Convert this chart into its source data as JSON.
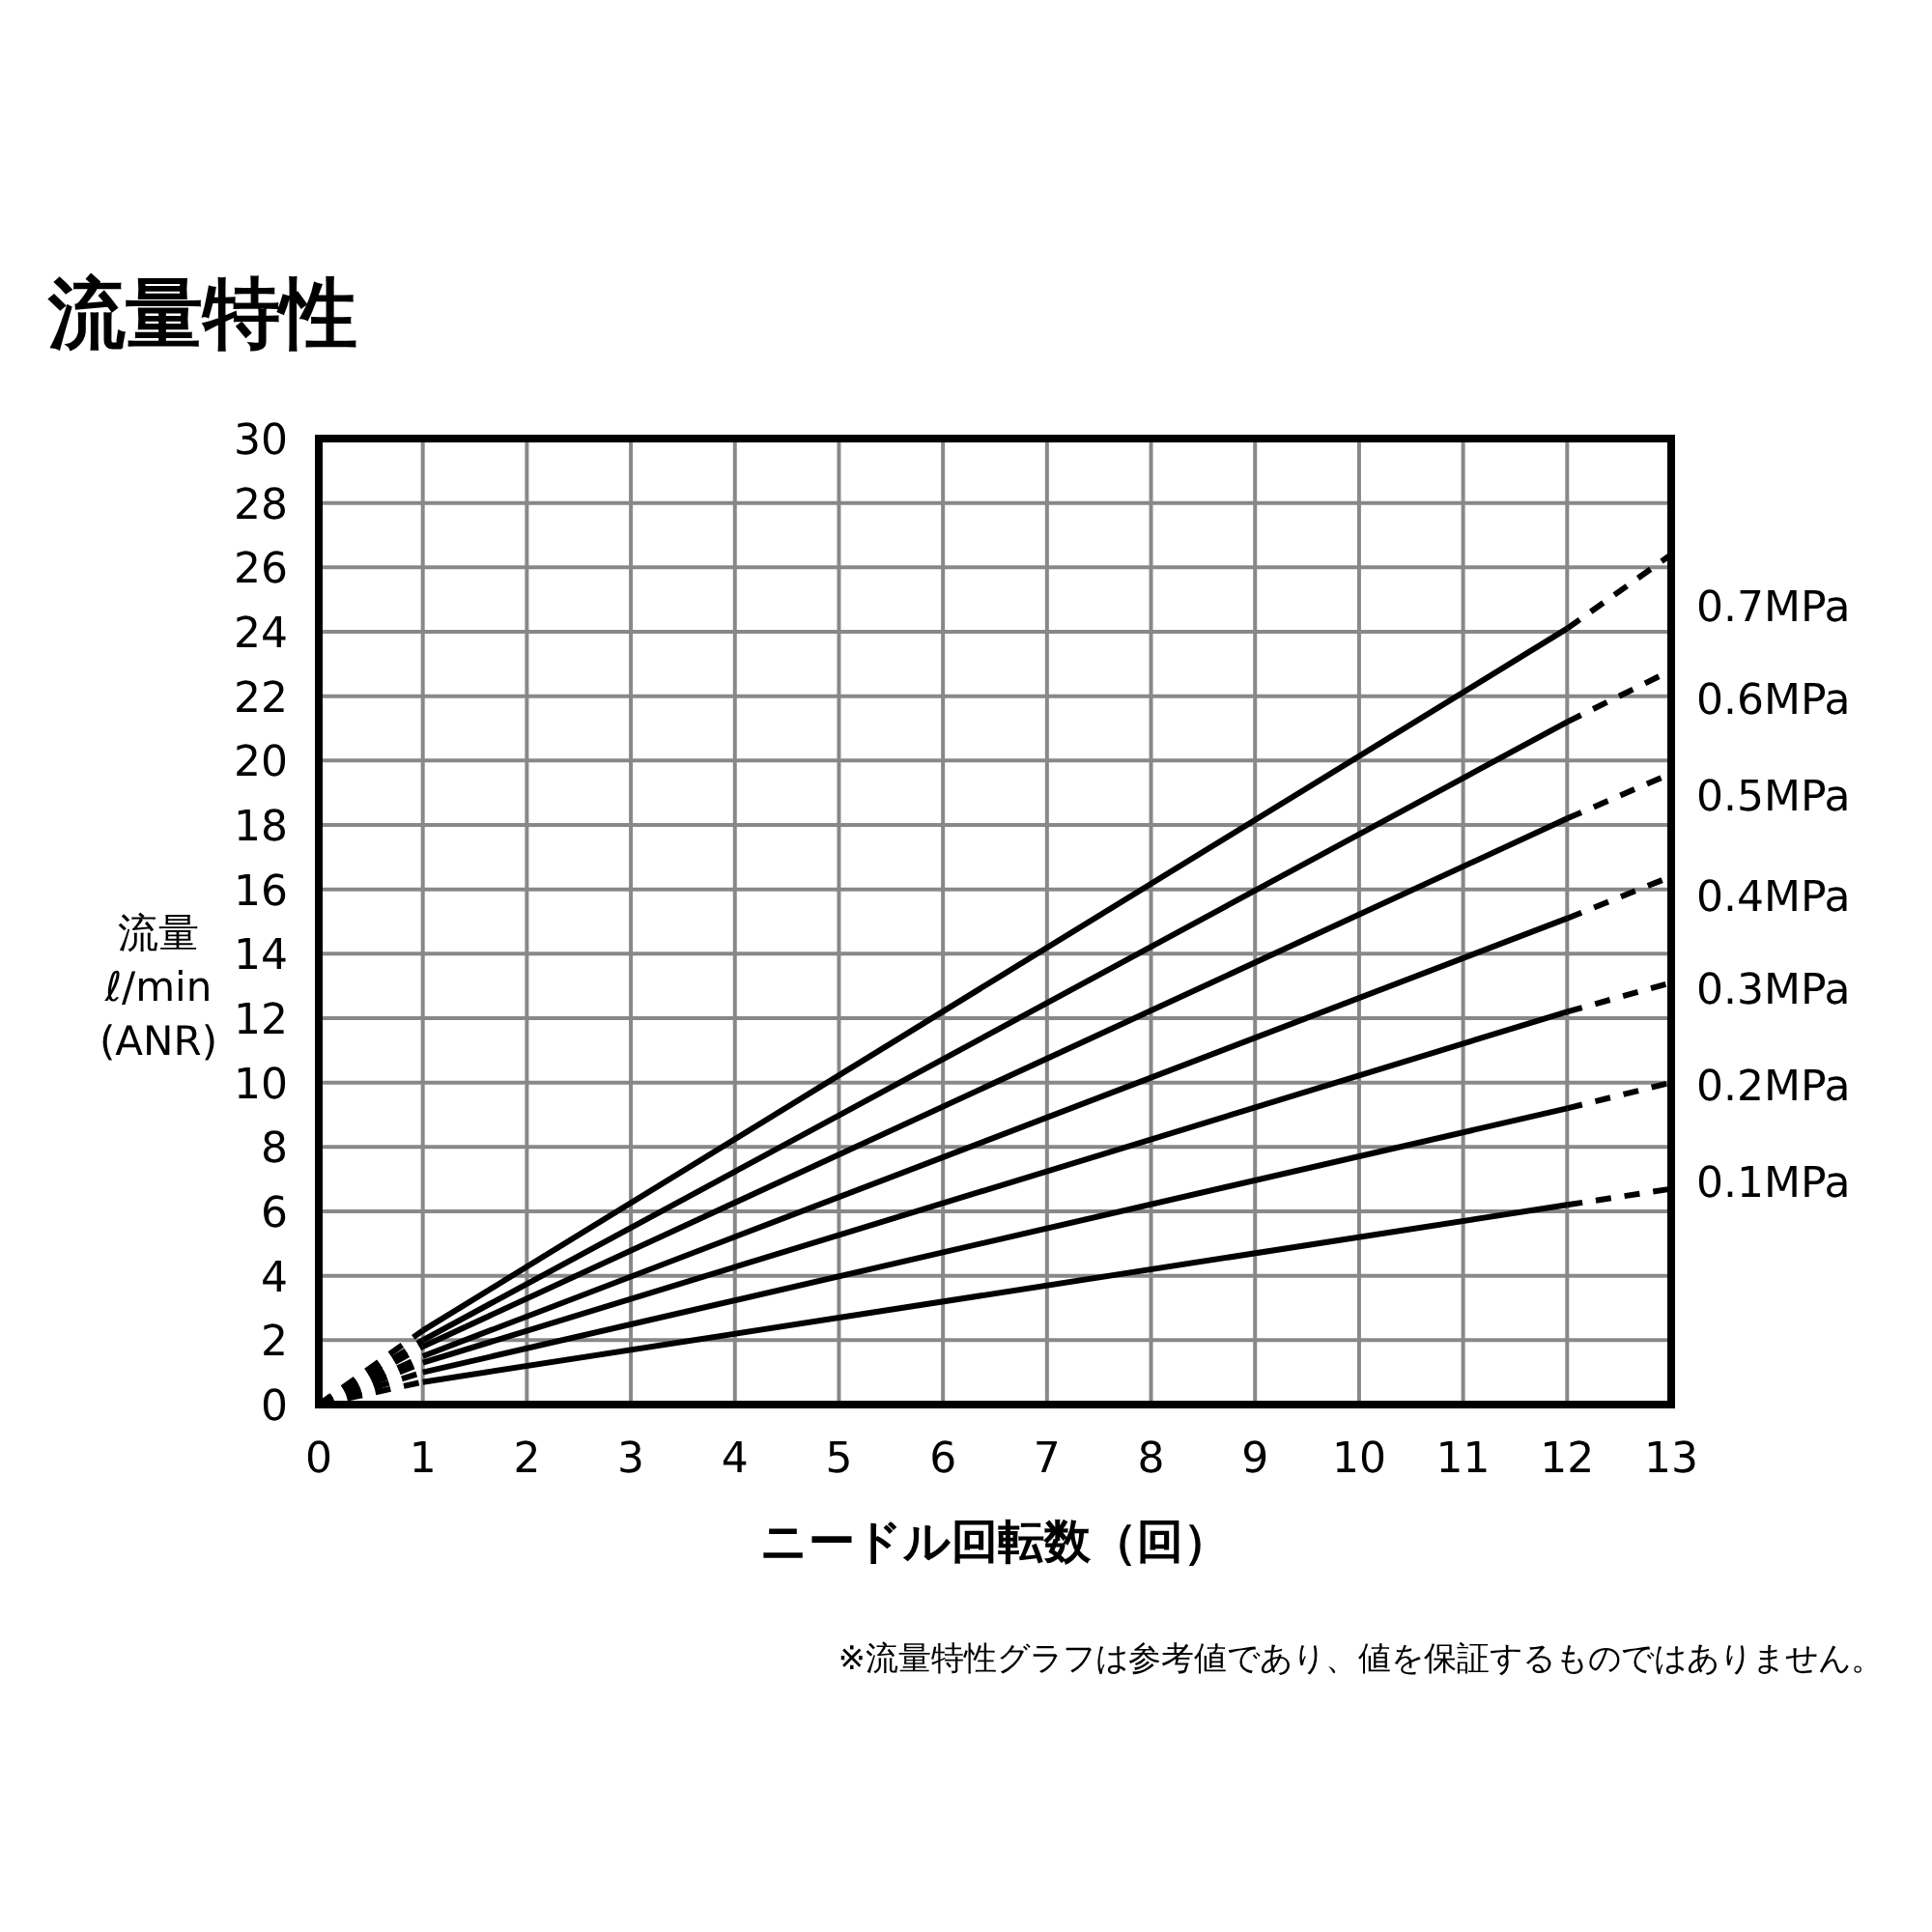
{
  "chart_data": {
    "type": "line",
    "title": "流量特性",
    "xlabel": "ニードル回転数（回）",
    "ylabel": "流量\nℓ/min\n(ANR)",
    "xlim": [
      0,
      13
    ],
    "xticks": [
      0,
      1,
      2,
      3,
      4,
      5,
      6,
      7,
      8,
      9,
      10,
      11,
      12,
      13
    ],
    "ylim": [
      0,
      30
    ],
    "yticks": [
      0,
      2,
      4,
      6,
      8,
      10,
      12,
      14,
      16,
      18,
      20,
      22,
      24,
      26,
      28,
      30
    ],
    "grid": true,
    "legend": false,
    "series": [
      {
        "name": "0.7MPa",
        "color": "#000000",
        "line_style": "solid",
        "x": [
          1,
          12
        ],
        "values": [
          2.3,
          24.1
        ]
      },
      {
        "name": "0.6MPa",
        "color": "#000000",
        "line_style": "solid",
        "x": [
          1,
          12
        ],
        "values": [
          2.0,
          21.2
        ]
      },
      {
        "name": "0.5MPa",
        "color": "#000000",
        "line_style": "solid",
        "x": [
          1,
          12
        ],
        "values": [
          1.8,
          18.2
        ]
      },
      {
        "name": "0.4MPa",
        "color": "#000000",
        "line_style": "solid",
        "x": [
          1,
          12
        ],
        "values": [
          1.5,
          15.1
        ]
      },
      {
        "name": "0.3MPa",
        "color": "#000000",
        "line_style": "solid",
        "x": [
          1,
          12
        ],
        "values": [
          1.3,
          12.2
        ]
      },
      {
        "name": "0.2MPa",
        "color": "#000000",
        "line_style": "solid",
        "x": [
          1,
          12
        ],
        "values": [
          1.0,
          9.2
        ]
      },
      {
        "name": "0.1MPa",
        "color": "#000000",
        "line_style": "solid",
        "x": [
          1,
          12
        ],
        "values": [
          0.7,
          6.2
        ]
      },
      {
        "color": "#000000",
        "line_style": "dashed",
        "x": [
          0,
          1
        ],
        "values": [
          0,
          2.3
        ]
      },
      {
        "color": "#000000",
        "line_style": "dashed",
        "x": [
          0,
          1
        ],
        "values": [
          0,
          2.0
        ]
      },
      {
        "color": "#000000",
        "line_style": "dashed",
        "x": [
          0,
          1
        ],
        "values": [
          0,
          1.8
        ]
      },
      {
        "color": "#000000",
        "line_style": "dashed",
        "x": [
          0,
          1
        ],
        "values": [
          0,
          1.5
        ]
      },
      {
        "color": "#000000",
        "line_style": "dashed",
        "x": [
          0,
          1
        ],
        "values": [
          0,
          1.3
        ]
      },
      {
        "color": "#000000",
        "line_style": "dashed",
        "x": [
          0,
          1
        ],
        "values": [
          0,
          1.0
        ]
      },
      {
        "color": "#000000",
        "line_style": "dashed",
        "x": [
          0,
          1
        ],
        "values": [
          0,
          0.7
        ]
      },
      {
        "color": "#000000",
        "line_style": "dashed",
        "x": [
          12,
          13
        ],
        "values": [
          24.1,
          26.4
        ]
      },
      {
        "color": "#000000",
        "line_style": "dashed",
        "x": [
          12,
          13
        ],
        "values": [
          21.2,
          22.8
        ]
      },
      {
        "color": "#000000",
        "line_style": "dashed",
        "x": [
          12,
          13
        ],
        "values": [
          18.2,
          19.6
        ]
      },
      {
        "color": "#000000",
        "line_style": "dashed",
        "x": [
          12,
          13
        ],
        "values": [
          15.1,
          16.4
        ]
      },
      {
        "color": "#000000",
        "line_style": "dashed",
        "x": [
          12,
          13
        ],
        "values": [
          12.2,
          13.1
        ]
      },
      {
        "color": "#000000",
        "line_style": "dashed",
        "x": [
          12,
          13
        ],
        "values": [
          9.2,
          10.0
        ]
      },
      {
        "color": "#000000",
        "line_style": "dashed",
        "x": [
          12,
          13
        ],
        "values": [
          6.2,
          6.7
        ]
      }
    ],
    "annotations": [
      "※流量特性グラフは参考値であり、値を保証するものではありません。"
    ]
  }
}
